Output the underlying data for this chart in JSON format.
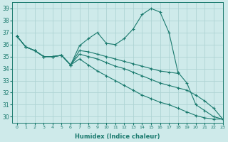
{
  "xlabel": "Humidex (Indice chaleur)",
  "ylabel": "",
  "bg_color": "#ceeaea",
  "grid_color": "#aed4d4",
  "line_color": "#1a7a6e",
  "xlim": [
    -0.5,
    23
  ],
  "ylim": [
    29.5,
    39.5
  ],
  "xticks": [
    0,
    1,
    2,
    3,
    4,
    5,
    6,
    7,
    8,
    9,
    10,
    11,
    12,
    13,
    14,
    15,
    16,
    17,
    18,
    19,
    20,
    21,
    22,
    23
  ],
  "yticks": [
    30,
    31,
    32,
    33,
    34,
    35,
    36,
    37,
    38,
    39
  ],
  "series": [
    [
      36.7,
      35.8,
      35.5,
      35.0,
      35.0,
      35.1,
      34.3,
      35.9,
      36.5,
      37.0,
      36.1,
      36.0,
      36.5,
      37.3,
      38.5,
      39.0,
      38.7,
      37.0,
      33.7,
      32.8,
      31.0,
      30.5,
      30.0,
      29.8
    ],
    [
      36.7,
      35.8,
      35.5,
      35.0,
      35.0,
      35.1,
      34.3,
      35.5,
      35.4,
      35.2,
      35.0,
      34.8,
      34.6,
      34.4,
      34.2,
      34.0,
      33.8,
      33.7,
      33.6,
      null,
      null,
      null,
      null,
      null
    ],
    [
      36.7,
      35.8,
      35.5,
      35.0,
      35.0,
      35.1,
      34.3,
      35.2,
      35.0,
      34.8,
      34.5,
      34.2,
      34.0,
      33.7,
      33.4,
      33.1,
      32.8,
      32.6,
      32.4,
      32.2,
      31.8,
      31.3,
      30.7,
      29.8
    ],
    [
      36.7,
      35.8,
      35.5,
      35.0,
      35.0,
      35.1,
      34.3,
      34.8,
      34.3,
      33.8,
      33.4,
      33.0,
      32.6,
      32.2,
      31.8,
      31.5,
      31.2,
      31.0,
      30.7,
      30.4,
      30.1,
      29.9,
      29.8,
      29.8
    ]
  ]
}
